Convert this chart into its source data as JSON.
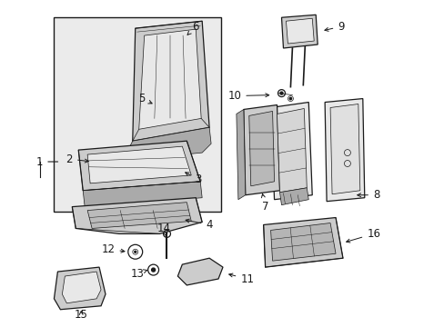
{
  "bg_color": "#ffffff",
  "line_color": "#1a1a1a",
  "fig_width": 4.89,
  "fig_height": 3.6,
  "dpi": 100,
  "gray_light": "#e8e8e8",
  "gray_mid": "#cccccc",
  "gray_dark": "#aaaaaa",
  "box_fill": "#ebebeb"
}
